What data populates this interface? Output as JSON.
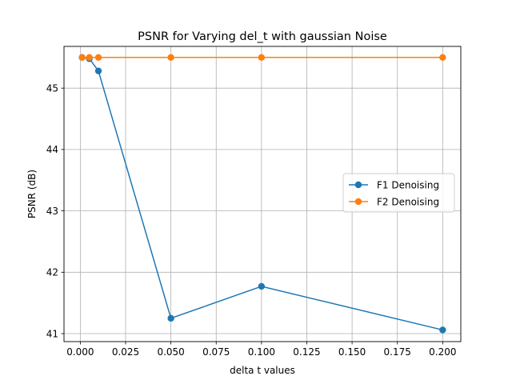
{
  "chart_data": {
    "type": "line",
    "title": "PSNR for Varying del_t with gaussian Noise",
    "xlabel": "delta t values",
    "ylabel": "PSNR (dB)",
    "xlim": [
      -0.009,
      0.21
    ],
    "ylim": [
      40.87,
      45.68
    ],
    "xticks": [
      0.0,
      0.025,
      0.05,
      0.075,
      0.1,
      0.125,
      0.15,
      0.175,
      0.2
    ],
    "xtick_labels": [
      "0.000",
      "0.025",
      "0.050",
      "0.075",
      "0.100",
      "0.125",
      "0.150",
      "0.175",
      "0.200"
    ],
    "yticks": [
      41,
      42,
      43,
      44,
      45
    ],
    "ytick_labels": [
      "41",
      "42",
      "43",
      "44",
      "45"
    ],
    "grid": true,
    "legend_position": "center-right",
    "series": [
      {
        "name": "F1 Denoising",
        "color": "#1f77b4",
        "x": [
          0.001,
          0.005,
          0.01,
          0.05,
          0.1,
          0.2
        ],
        "y": [
          45.5,
          45.48,
          45.28,
          41.25,
          41.77,
          41.06
        ]
      },
      {
        "name": "F2 Denoising",
        "color": "#ff7f0e",
        "x": [
          0.001,
          0.005,
          0.01,
          0.05,
          0.1,
          0.2
        ],
        "y": [
          45.5,
          45.5,
          45.5,
          45.5,
          45.5,
          45.5
        ]
      }
    ]
  }
}
